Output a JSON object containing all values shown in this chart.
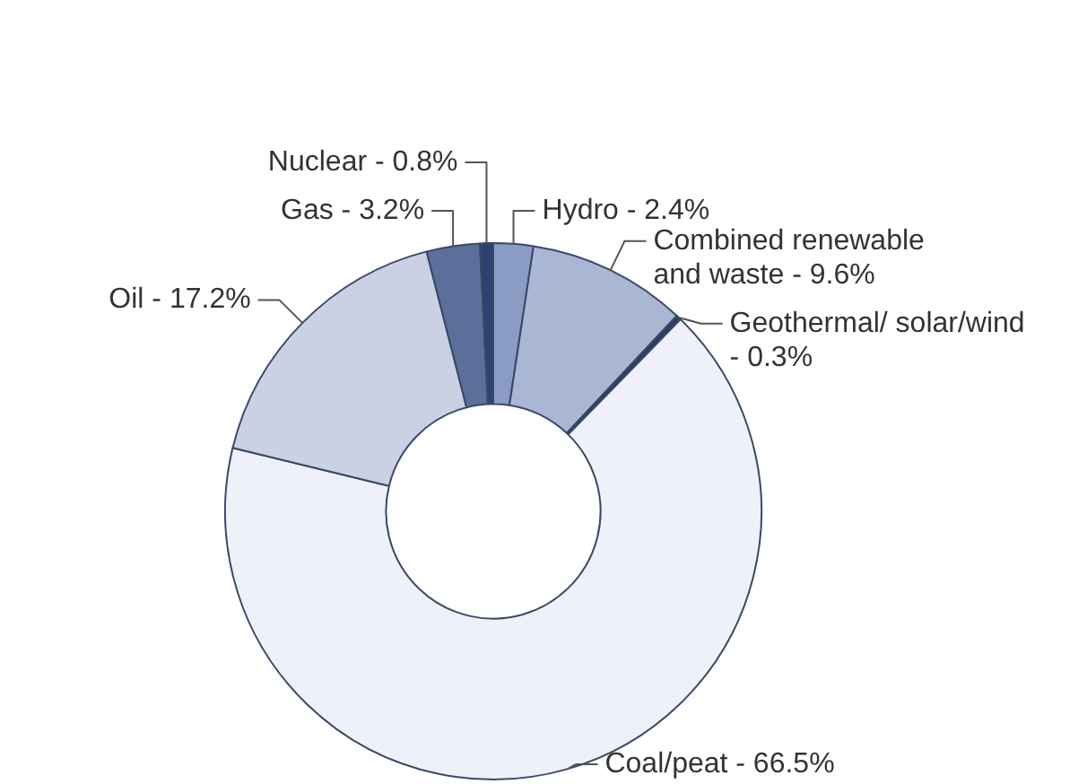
{
  "chart_data": {
    "type": "donut",
    "categories": [
      "Hydro - 2.4%",
      "Combined renewable and waste - 9.6%",
      "Geothermal/ solar/wind - 0.3%",
      "Coal/peat - 66.5%",
      "Oil - 17.2%",
      "Gas - 3.2%",
      "Nuclear - 0.8%"
    ],
    "values": [
      2.4,
      9.6,
      0.3,
      66.5,
      17.2,
      3.2,
      0.8
    ],
    "colors": [
      "#8a9cc4",
      "#a9b6d4",
      "#2c3c60",
      "#eef1f8",
      "#c9d1e3",
      "#5c6f9a",
      "#2f4170"
    ],
    "legend": false
  }
}
